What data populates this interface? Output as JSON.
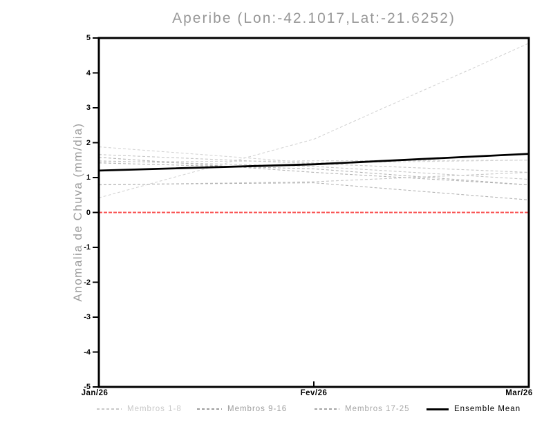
{
  "title": "Aperibe (Lon:-42.1017,Lat:-21.6252)",
  "colors": {
    "title_text": "#989898",
    "axis_label_text": "#9c9c9c",
    "frame": "#000000",
    "zero_line": "#f95353",
    "ensemble_mean": "#000000",
    "members_1_8": "#d4d4d4",
    "members_9_16": "#c6c6c6",
    "members_17_25": "#b4b4b4"
  },
  "chart_data": {
    "type": "line",
    "title": "Aperibe (Lon:-42.1017,Lat:-21.6252)",
    "ylabel": "Anomalia de Chuva (mm/dia)",
    "xlabel": "",
    "x_labels": [
      "Jan/26",
      "Fev/26",
      "Mar/26"
    ],
    "ylim": [
      -5,
      5
    ],
    "yticks": [
      5,
      4,
      3,
      2,
      1,
      0,
      -1,
      -2,
      -3,
      -4,
      -5
    ],
    "grid": false,
    "zero_line": {
      "y": 0,
      "color": "#f95353",
      "style": "dashed"
    },
    "series": [
      {
        "name": "member",
        "group": "members_1_8",
        "values": [
          1.88,
          1.42,
          1.5
        ]
      },
      {
        "name": "member",
        "group": "members_1_8",
        "values": [
          1.45,
          1.48,
          1.5
        ]
      },
      {
        "name": "member",
        "group": "members_1_8",
        "values": [
          0.42,
          2.1,
          4.85
        ]
      },
      {
        "name": "member",
        "group": "members_9_16",
        "values": [
          1.66,
          1.4,
          1.15
        ]
      },
      {
        "name": "member",
        "group": "members_9_16",
        "values": [
          1.48,
          1.32,
          0.95
        ]
      },
      {
        "name": "member",
        "group": "members_9_16",
        "values": [
          0.79,
          0.88,
          1.15
        ]
      },
      {
        "name": "member",
        "group": "members_17_25",
        "values": [
          1.58,
          1.15,
          0.79
        ]
      },
      {
        "name": "member",
        "group": "members_17_25",
        "values": [
          1.42,
          1.25,
          0.79
        ]
      },
      {
        "name": "member",
        "group": "members_17_25",
        "values": [
          0.8,
          0.85,
          0.36
        ]
      }
    ],
    "mean_series": {
      "name": "Ensemble Mean",
      "values": [
        1.2,
        1.38,
        1.68
      ]
    },
    "legend_position": "bottom",
    "legend": [
      {
        "label": "Membros 1-8",
        "color": "#c9c9c9",
        "swatch": "dashed",
        "x": 140
      },
      {
        "label": "Membros 9-16",
        "color": "#9d9d9d",
        "swatch": "dashed",
        "x": 285
      },
      {
        "label": "Membros 17-25",
        "color": "#a6a6a6",
        "swatch": "dashed",
        "x": 455
      },
      {
        "label": "Ensemble Mean",
        "color": "#000000",
        "swatch": "solid",
        "x": 617
      }
    ]
  }
}
